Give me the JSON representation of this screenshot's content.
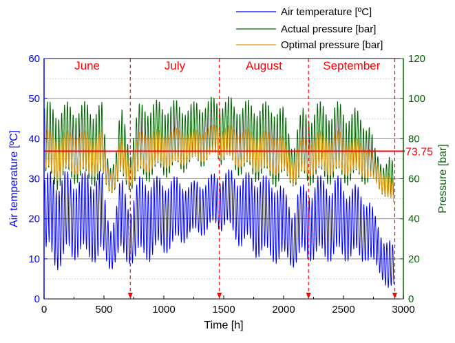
{
  "chart_data": {
    "type": "line",
    "xlabel": "Time [h]",
    "ylabel_left": "Air temperature [ºC]",
    "ylabel_right": "Pressure [bar]",
    "xlim": [
      0,
      3000
    ],
    "ylim_left": [
      0,
      60
    ],
    "ylim_right": [
      0,
      120
    ],
    "x_ticks": [
      "0",
      "500",
      "1000",
      "1500",
      "2000",
      "2500",
      "3000"
    ],
    "y_left_ticks": [
      "0",
      "10",
      "20",
      "30",
      "40",
      "50",
      "60"
    ],
    "y_right_ticks": [
      "0",
      "20",
      "40",
      "60",
      "80",
      "100",
      "120"
    ],
    "grid": "horizontal",
    "legend_position": "top-right",
    "colors": {
      "air": "#0000ff",
      "actual": "#006400",
      "optimal": "#e8960c",
      "marker": "#ff0000"
    },
    "series": [
      {
        "name": "Air temperature [ºC]",
        "axis": "left",
        "color": "#0000ff",
        "x": [
          0,
          40,
          80,
          120,
          160,
          200,
          240,
          280,
          320,
          360,
          400,
          440,
          480,
          520,
          560,
          600,
          640,
          680,
          720,
          760,
          800,
          840,
          880,
          920,
          960,
          1000,
          1040,
          1080,
          1120,
          1160,
          1200,
          1240,
          1280,
          1320,
          1360,
          1400,
          1440,
          1480,
          1520,
          1560,
          1600,
          1640,
          1680,
          1720,
          1760,
          1800,
          1840,
          1880,
          1920,
          1960,
          2000,
          2040,
          2080,
          2120,
          2160,
          2200,
          2240,
          2280,
          2320,
          2360,
          2400,
          2440,
          2480,
          2520,
          2560,
          2600,
          2640,
          2680,
          2720,
          2760,
          2800,
          2840,
          2880,
          2920
        ],
        "mean": [
          20,
          21,
          20,
          19,
          20,
          21,
          20,
          21,
          21,
          20,
          20,
          21,
          21,
          15,
          13,
          16,
          20,
          18,
          16,
          18,
          20,
          21,
          20,
          20,
          21,
          21,
          21,
          21,
          22,
          22,
          22,
          22,
          23,
          23,
          23,
          24,
          25,
          24,
          25,
          24,
          23,
          22,
          22,
          22,
          21,
          21,
          20,
          20,
          20,
          19,
          18,
          17,
          15,
          18,
          19,
          19,
          19,
          20,
          20,
          20,
          19,
          20,
          20,
          19,
          19,
          19,
          18,
          18,
          17,
          14,
          12,
          10,
          8,
          7
        ],
        "amp": [
          9,
          9,
          10,
          10,
          10,
          9,
          9,
          9,
          9,
          10,
          9,
          10,
          10,
          6,
          5,
          6,
          9,
          8,
          6,
          8,
          9,
          9,
          9,
          9,
          8,
          8,
          8,
          8,
          7,
          7,
          6,
          6,
          6,
          6,
          6,
          6,
          6,
          6,
          6,
          7,
          7,
          8,
          8,
          8,
          9,
          9,
          9,
          9,
          9,
          9,
          8,
          7,
          6,
          8,
          8,
          8,
          8,
          9,
          9,
          9,
          8,
          9,
          9,
          8,
          8,
          8,
          8,
          7,
          7,
          6,
          5,
          5,
          6,
          5
        ]
      },
      {
        "name": "Actual pressure [bar]",
        "axis": "right",
        "color": "#006400",
        "x": [
          0,
          40,
          80,
          120,
          160,
          200,
          240,
          280,
          320,
          360,
          400,
          440,
          480,
          520,
          560,
          600,
          640,
          680,
          720,
          760,
          800,
          840,
          880,
          920,
          960,
          1000,
          1040,
          1080,
          1120,
          1160,
          1200,
          1240,
          1280,
          1320,
          1360,
          1400,
          1440,
          1480,
          1520,
          1560,
          1600,
          1640,
          1680,
          1720,
          1760,
          1800,
          1840,
          1880,
          1920,
          1960,
          2000,
          2040,
          2080,
          2120,
          2160,
          2200,
          2240,
          2280,
          2320,
          2360,
          2400,
          2440,
          2480,
          2520,
          2560,
          2600,
          2640,
          2680,
          2720,
          2760,
          2800,
          2840,
          2880,
          2920
        ],
        "mean": [
          78,
          78,
          77,
          76,
          77,
          78,
          78,
          78,
          78,
          77,
          77,
          78,
          78,
          64,
          60,
          64,
          76,
          72,
          64,
          72,
          78,
          79,
          79,
          79,
          80,
          80,
          80,
          80,
          81,
          81,
          81,
          81,
          83,
          83,
          83,
          84,
          86,
          84,
          84,
          83,
          81,
          80,
          80,
          80,
          79,
          79,
          78,
          78,
          78,
          77,
          76,
          72,
          66,
          72,
          76,
          76,
          76,
          78,
          78,
          78,
          76,
          78,
          78,
          76,
          76,
          76,
          75,
          74,
          73,
          66,
          62,
          60,
          60,
          58
        ],
        "amp": [
          17,
          17,
          18,
          18,
          17,
          17,
          17,
          17,
          17,
          18,
          17,
          18,
          18,
          8,
          6,
          8,
          17,
          14,
          8,
          14,
          17,
          17,
          17,
          17,
          16,
          16,
          16,
          16,
          15,
          15,
          14,
          14,
          14,
          14,
          14,
          14,
          13,
          14,
          14,
          15,
          15,
          16,
          16,
          16,
          17,
          17,
          17,
          17,
          18,
          18,
          16,
          12,
          8,
          14,
          16,
          16,
          16,
          17,
          17,
          17,
          16,
          17,
          17,
          16,
          16,
          16,
          15,
          14,
          13,
          8,
          7,
          7,
          10,
          8
        ]
      },
      {
        "name": "Optimal pressure [bar]",
        "axis": "right",
        "color": "#e8960c",
        "x": [
          0,
          40,
          80,
          120,
          160,
          200,
          240,
          280,
          320,
          360,
          400,
          440,
          480,
          520,
          560,
          600,
          640,
          680,
          720,
          760,
          800,
          840,
          880,
          920,
          960,
          1000,
          1040,
          1080,
          1120,
          1160,
          1200,
          1240,
          1280,
          1320,
          1360,
          1400,
          1440,
          1480,
          1520,
          1560,
          1600,
          1640,
          1680,
          1720,
          1760,
          1800,
          1840,
          1880,
          1920,
          1960,
          2000,
          2040,
          2080,
          2120,
          2160,
          2200,
          2240,
          2280,
          2320,
          2360,
          2400,
          2440,
          2480,
          2520,
          2560,
          2600,
          2640,
          2680,
          2720,
          2760,
          2800,
          2840,
          2880,
          2920
        ],
        "mean": [
          73,
          73,
          72,
          71,
          72,
          73,
          73,
          73,
          73,
          72,
          72,
          73,
          73,
          62,
          58,
          62,
          71,
          68,
          62,
          68,
          73,
          74,
          74,
          74,
          75,
          75,
          75,
          75,
          76,
          76,
          76,
          76,
          77,
          77,
          77,
          78,
          80,
          78,
          78,
          77,
          76,
          75,
          75,
          75,
          74,
          74,
          73,
          73,
          73,
          72,
          71,
          68,
          63,
          68,
          71,
          71,
          71,
          73,
          73,
          73,
          71,
          73,
          73,
          71,
          71,
          71,
          70,
          69,
          68,
          63,
          60,
          58,
          56,
          52
        ],
        "amp": [
          9,
          9,
          10,
          10,
          9,
          9,
          9,
          9,
          9,
          10,
          9,
          10,
          10,
          5,
          4,
          5,
          9,
          8,
          5,
          8,
          9,
          9,
          9,
          9,
          8,
          8,
          8,
          8,
          8,
          8,
          7,
          7,
          7,
          7,
          7,
          7,
          7,
          7,
          7,
          8,
          8,
          8,
          8,
          8,
          9,
          9,
          9,
          9,
          9,
          9,
          8,
          7,
          5,
          8,
          8,
          8,
          8,
          9,
          9,
          9,
          8,
          9,
          9,
          8,
          8,
          8,
          8,
          7,
          7,
          5,
          5,
          5,
          6,
          5
        ]
      }
    ],
    "reference_line": {
      "value": 73.75,
      "axis": "right",
      "label": "73.75",
      "color": "#ff0000"
    },
    "month_boundaries_h": [
      0,
      720,
      1464,
      2208,
      2928
    ],
    "months": [
      "June",
      "July",
      "August",
      "September"
    ]
  }
}
